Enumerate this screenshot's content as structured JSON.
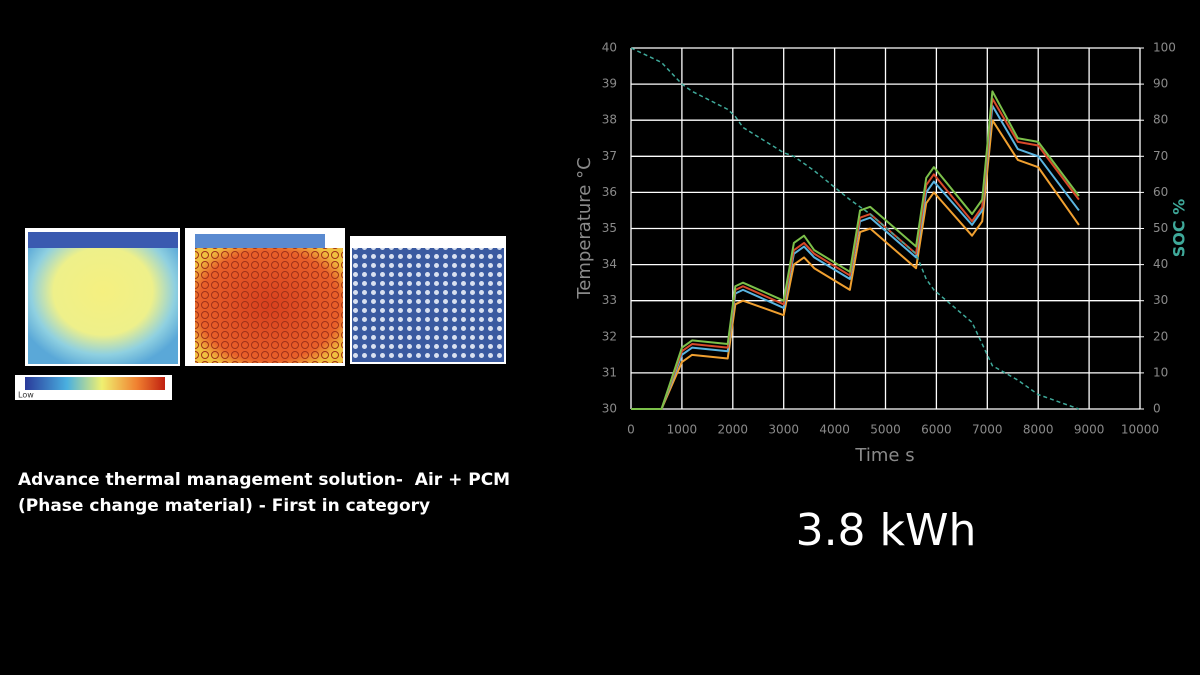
{
  "chart_data": {
    "type": "line",
    "xlabel": "Time s",
    "ylabel": "Temperature °C",
    "y2label": "SOC %",
    "x": [
      0,
      600,
      1000,
      1200,
      1900,
      2050,
      2200,
      3000,
      3200,
      3400,
      3600,
      4300,
      4500,
      4700,
      5600,
      5800,
      5950,
      6700,
      6900,
      7100,
      7600,
      8000,
      8800
    ],
    "series": [
      {
        "color": "#f0a030",
        "values": [
          30,
          30,
          31.3,
          31.5,
          31.4,
          32.9,
          33.0,
          32.6,
          34.0,
          34.2,
          33.9,
          33.3,
          34.9,
          35.0,
          33.9,
          35.7,
          36.0,
          34.8,
          35.2,
          38.0,
          36.9,
          36.7,
          35.1
        ]
      },
      {
        "color": "#5ab4e0",
        "values": [
          30,
          30,
          31.5,
          31.7,
          31.6,
          33.2,
          33.3,
          32.8,
          34.3,
          34.5,
          34.2,
          33.6,
          35.2,
          35.3,
          34.2,
          36.0,
          36.3,
          35.1,
          35.5,
          38.4,
          37.2,
          37.0,
          35.5
        ]
      },
      {
        "color": "#d84a2a",
        "values": [
          30,
          30,
          31.6,
          31.8,
          31.7,
          33.3,
          33.4,
          32.9,
          34.4,
          34.6,
          34.3,
          33.7,
          35.3,
          35.4,
          34.3,
          36.2,
          36.5,
          35.2,
          35.6,
          38.6,
          37.4,
          37.3,
          35.8
        ]
      },
      {
        "color": "#7cc04a",
        "values": [
          30,
          30,
          31.7,
          31.9,
          31.8,
          33.4,
          33.5,
          33.0,
          34.6,
          34.8,
          34.4,
          33.8,
          35.5,
          35.6,
          34.5,
          36.4,
          36.7,
          35.4,
          35.8,
          38.8,
          37.5,
          37.4,
          35.9
        ]
      },
      {
        "color": "#3fa99a",
        "axis": "y2",
        "dashed": true,
        "values": [
          100,
          96,
          90,
          88,
          83,
          81,
          78,
          71,
          70,
          68,
          66,
          58,
          56,
          54,
          43,
          36,
          33,
          24,
          18,
          12,
          8,
          4,
          0
        ]
      }
    ],
    "xlim": [
      0,
      10000
    ],
    "xticks": [
      0,
      1000,
      2000,
      3000,
      4000,
      5000,
      6000,
      7000,
      8000,
      9000,
      10000
    ],
    "ylim": [
      30,
      40
    ],
    "yticks": [
      30,
      31,
      32,
      33,
      34,
      35,
      36,
      37,
      38,
      39,
      40
    ],
    "y2lim": [
      0,
      100
    ],
    "y2ticks": [
      0,
      10,
      20,
      30,
      40,
      50,
      60,
      70,
      80,
      90,
      100
    ],
    "grid": true
  },
  "colorbar_label": "Low",
  "caption": [
    "Advance thermal management solution-  Air + PCM",
    "(Phase change material) - First in category"
  ],
  "capacity": "3.8 kWh"
}
